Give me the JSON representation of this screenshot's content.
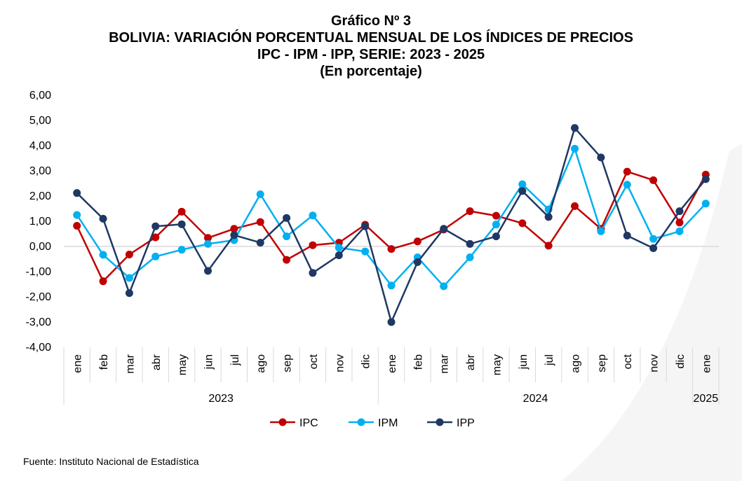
{
  "title": {
    "line1": "Gráfico Nº 3",
    "line2": "BOLIVIA: VARIACIÓN PORCENTUAL MENSUAL DE LOS ÍNDICES DE PRECIOS",
    "line3": "IPC - IPM - IPP, SERIE: 2023 - 2025",
    "line4": "(En porcentaje)"
  },
  "source": "Fuente: Instituto Nacional de Estadística",
  "chart_data": {
    "type": "line",
    "title": "BOLIVIA: VARIACIÓN PORCENTUAL MENSUAL DE LOS ÍNDICES DE PRECIOS",
    "xlabel": "",
    "ylabel": "",
    "ylim": [
      -4,
      6
    ],
    "yticks": [
      "-4,00",
      "-3,00",
      "-2,00",
      "-1,00",
      "0,00",
      "1,00",
      "2,00",
      "3,00",
      "4,00",
      "5,00",
      "6,00"
    ],
    "grid": "zero line only",
    "legend_position": "bottom",
    "categories": [
      "ene",
      "feb",
      "mar",
      "abr",
      "may",
      "jun",
      "jul",
      "ago",
      "sep",
      "oct",
      "nov",
      "dic",
      "ene",
      "feb",
      "mar",
      "abr",
      "may",
      "jun",
      "jul",
      "ago",
      "sep",
      "oct",
      "nov",
      "dic",
      "ene"
    ],
    "year_groups": [
      {
        "label": "2023",
        "count": 12
      },
      {
        "label": "2024",
        "count": 12
      },
      {
        "label": "2025",
        "count": 1
      }
    ],
    "series": [
      {
        "name": "IPC",
        "color": "#C00000",
        "values": [
          0.82,
          -1.38,
          -0.32,
          0.36,
          1.38,
          0.34,
          0.7,
          0.97,
          -0.53,
          0.05,
          0.15,
          0.86,
          -0.1,
          0.2,
          0.67,
          1.4,
          1.22,
          0.92,
          0.03,
          1.6,
          0.7,
          2.97,
          2.63,
          0.95,
          2.85
        ]
      },
      {
        "name": "IPM",
        "color": "#00B0F0",
        "values": [
          1.25,
          -0.33,
          -1.25,
          -0.4,
          -0.13,
          0.1,
          0.25,
          2.07,
          0.4,
          1.23,
          -0.05,
          -0.2,
          -1.55,
          -0.43,
          -1.58,
          -0.43,
          0.87,
          2.47,
          1.47,
          3.88,
          0.6,
          2.45,
          0.3,
          0.6,
          1.7
        ]
      },
      {
        "name": "IPP",
        "color": "#1F3864",
        "values": [
          2.12,
          1.1,
          -1.85,
          0.8,
          0.88,
          -0.97,
          0.45,
          0.15,
          1.13,
          -1.05,
          -0.35,
          0.8,
          -3.0,
          -0.62,
          0.7,
          0.1,
          0.4,
          2.2,
          1.17,
          4.7,
          3.53,
          0.43,
          -0.07,
          1.4,
          2.67
        ]
      }
    ]
  }
}
